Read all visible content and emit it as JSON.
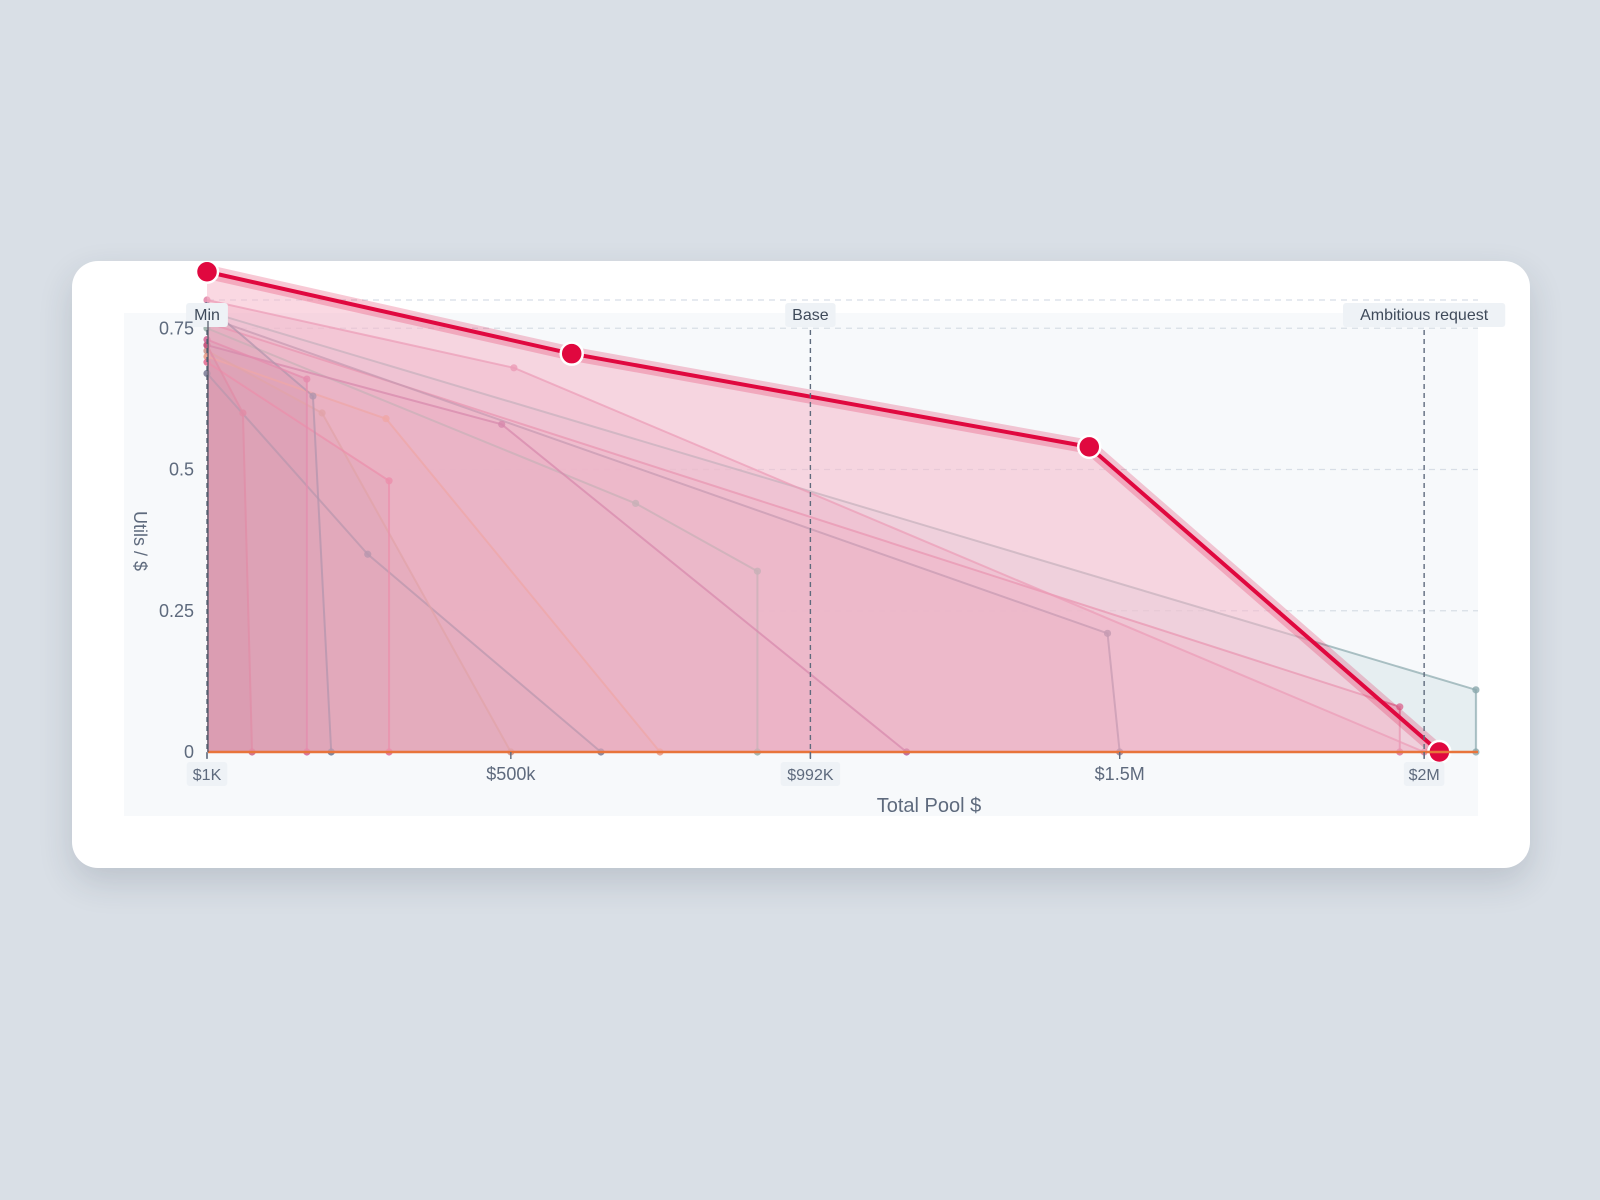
{
  "chart_data": {
    "type": "area",
    "title": "",
    "xlabel": "Total Pool $",
    "ylabel": "Utils / $",
    "xlim": [
      1000,
      2210000
    ],
    "ylim": [
      0,
      0.8
    ],
    "grid": true,
    "y_ticks": [
      {
        "value": 0,
        "label": "0"
      },
      {
        "value": 0.25,
        "label": "0.25"
      },
      {
        "value": 0.5,
        "label": "0.5"
      },
      {
        "value": 0.75,
        "label": "0.75"
      }
    ],
    "x_ticks": [
      {
        "value": 1000,
        "label": "$1K",
        "boxed": true
      },
      {
        "value": 500000,
        "label": "$500k",
        "boxed": false
      },
      {
        "value": 992000,
        "label": "$992K",
        "boxed": true
      },
      {
        "value": 1500000,
        "label": "$1.5M",
        "boxed": false
      },
      {
        "value": 2000000,
        "label": "$2M",
        "boxed": true
      }
    ],
    "reference_lines": [
      {
        "label": "Min",
        "x": 1000
      },
      {
        "label": "Base",
        "x": 992000
      },
      {
        "label": "Ambitious request",
        "x": 2000000
      }
    ],
    "highlight": {
      "color": "#e0083f",
      "fill": "#f5b8cb",
      "points": [
        [
          1000,
          0.85
        ],
        [
          600000,
          0.705
        ],
        [
          1450000,
          0.54
        ],
        [
          2025000,
          0
        ]
      ]
    },
    "baseline_color": "#e8743b",
    "series": [
      {
        "color": "#8aa8ad",
        "fill": "#cfdfe2",
        "points": [
          [
            1000,
            0.78
          ],
          [
            2085000,
            0.11
          ],
          [
            2085000,
            0
          ]
        ]
      },
      {
        "color": "#d96a92",
        "fill": "#eab7c9",
        "points": [
          [
            1000,
            0.76
          ],
          [
            1960000,
            0.08
          ],
          [
            1960000,
            0
          ]
        ]
      },
      {
        "color": "#8a7694",
        "fill": "#d7b0c2",
        "points": [
          [
            1000,
            0.77
          ],
          [
            1480000,
            0.21
          ],
          [
            1500000,
            0
          ]
        ]
      },
      {
        "color": "#e07aa0",
        "fill": "#e7aac2",
        "points": [
          [
            1000,
            0.8
          ],
          [
            505000,
            0.68
          ],
          [
            2000000,
            0
          ]
        ]
      },
      {
        "color": "#8fa8a0",
        "fill": "#d6b8c3",
        "points": [
          [
            1000,
            0.75
          ],
          [
            705000,
            0.44
          ],
          [
            905000,
            0.32
          ],
          [
            905000,
            0
          ]
        ]
      },
      {
        "color": "#b04f88",
        "fill": "#d8a3ba",
        "points": [
          [
            1000,
            0.72
          ],
          [
            485000,
            0.58
          ],
          [
            1150000,
            0
          ]
        ]
      },
      {
        "color": "#e7927a",
        "fill": "#d99fae",
        "points": [
          [
            1000,
            0.7
          ],
          [
            295000,
            0.59
          ],
          [
            745000,
            0
          ]
        ]
      },
      {
        "color": "#6e6f8c",
        "fill": "#c79bad",
        "points": [
          [
            1000,
            0.67
          ],
          [
            265000,
            0.35
          ],
          [
            648000,
            0
          ]
        ]
      },
      {
        "color": "#c98a7f",
        "fill": "#c896a5",
        "points": [
          [
            1000,
            0.71
          ],
          [
            190000,
            0.6
          ],
          [
            500000,
            0
          ]
        ]
      },
      {
        "color": "#e05c86",
        "fill": "#c58ea2",
        "points": [
          [
            1000,
            0.69
          ],
          [
            300000,
            0.48
          ],
          [
            300000,
            0
          ]
        ]
      },
      {
        "color": "#5e6b8a",
        "fill": "#bb8aa0",
        "points": [
          [
            1000,
            0.79
          ],
          [
            175000,
            0.63
          ],
          [
            205000,
            0
          ]
        ]
      },
      {
        "color": "#d0558a",
        "fill": "#b97995",
        "points": [
          [
            1000,
            0.73
          ],
          [
            165000,
            0.66
          ],
          [
            165000,
            0
          ]
        ]
      },
      {
        "color": "#c8577a",
        "fill": "#b46e8c",
        "points": [
          [
            1000,
            0.72
          ],
          [
            60000,
            0.6
          ],
          [
            75000,
            0
          ]
        ]
      }
    ]
  }
}
